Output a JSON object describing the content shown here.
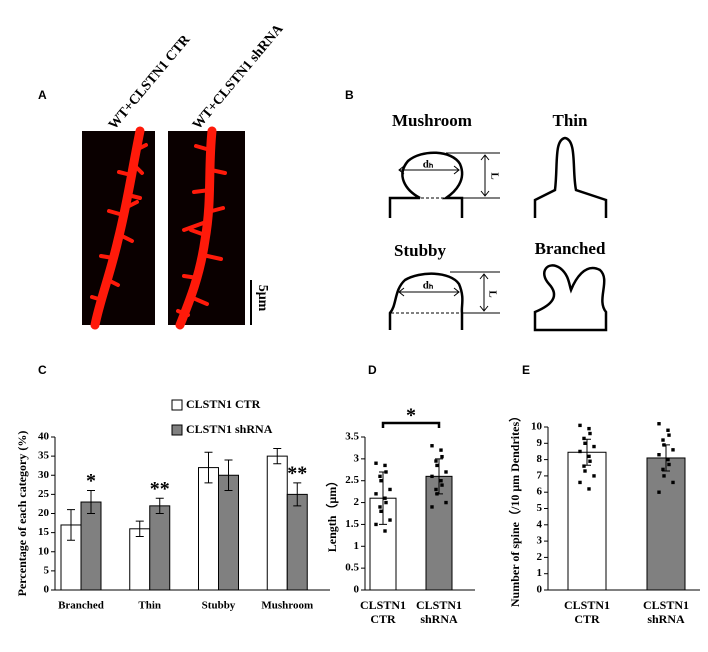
{
  "panels": {
    "a": "A",
    "b": "B",
    "c": "C",
    "d": "D",
    "e": "E"
  },
  "images": {
    "labels": [
      "WT+CLSTN1 CTR",
      "WT+CLSTN1 shRNA"
    ],
    "scale_bar": "5μm"
  },
  "diagram": {
    "shapes": [
      "Mushroom",
      "Thin",
      "Stubby",
      "Branched"
    ],
    "head_width": "dₕ",
    "length": "L"
  },
  "chart_data": [
    {
      "type": "bar",
      "y_label": "Percentage of each category (%)",
      "categories": [
        "Branched",
        "Thin",
        "Stubby",
        "Mushroom"
      ],
      "series": [
        {
          "name": "CLSTN1 CTR",
          "color": "#ffffff",
          "values": [
            17,
            16,
            32,
            35
          ],
          "errors": [
            4,
            2,
            4,
            2
          ]
        },
        {
          "name": "CLSTN1 shRNA",
          "color": "#808080",
          "values": [
            23,
            22,
            30,
            25
          ],
          "errors": [
            3,
            2,
            4,
            3
          ]
        }
      ],
      "ylim": [
        0,
        40
      ],
      "yticks": [
        0,
        5,
        10,
        15,
        20,
        25,
        30,
        35,
        40
      ],
      "annotations": [
        {
          "text": "*",
          "category": 0
        },
        {
          "text": "**",
          "category": 1
        },
        {
          "text": "**",
          "category": 3
        }
      ]
    },
    {
      "type": "bar",
      "y_label": "Length（μm）",
      "categories": [
        [
          "CLSTN1",
          "CTR"
        ],
        [
          "CLSTN1",
          "shRNA"
        ]
      ],
      "values": [
        2.1,
        2.6
      ],
      "errors": [
        0.6,
        0.4
      ],
      "colors": [
        "#ffffff",
        "#808080"
      ],
      "points": [
        [
          2.9,
          2.85,
          2.7,
          2.6,
          2.5,
          2.3,
          2.2,
          2.1,
          2.0,
          1.9,
          1.8,
          1.6,
          1.5,
          1.35
        ],
        [
          3.3,
          3.2,
          3.05,
          2.95,
          2.85,
          2.7,
          2.6,
          2.5,
          2.4,
          2.3,
          2.2,
          2.0,
          1.9
        ]
      ],
      "ylim": [
        0,
        3.5
      ],
      "yticks": [
        0,
        0.5,
        1,
        1.5,
        2,
        2.5,
        3,
        3.5
      ],
      "significance": "*"
    },
    {
      "type": "bar",
      "y_label": "Number of spine（/10 μm Dendrites）",
      "categories": [
        [
          "CLSTN1",
          "CTR"
        ],
        [
          "CLSTN1",
          "shRNA"
        ]
      ],
      "values": [
        8.45,
        8.1
      ],
      "errors": [
        0.8,
        0.8
      ],
      "colors": [
        "#ffffff",
        "#808080"
      ],
      "points": [
        [
          10.1,
          9.9,
          9.6,
          9.3,
          9.0,
          8.8,
          8.5,
          8.2,
          7.9,
          7.6,
          7.3,
          7.0,
          6.6,
          6.2
        ],
        [
          10.2,
          9.8,
          9.5,
          9.2,
          8.9,
          8.6,
          8.3,
          8.0,
          7.7,
          7.4,
          7.0,
          6.6,
          6.0
        ]
      ],
      "ylim": [
        0,
        10
      ],
      "yticks": [
        0,
        1,
        2,
        3,
        4,
        5,
        6,
        7,
        8,
        9,
        10
      ]
    }
  ]
}
